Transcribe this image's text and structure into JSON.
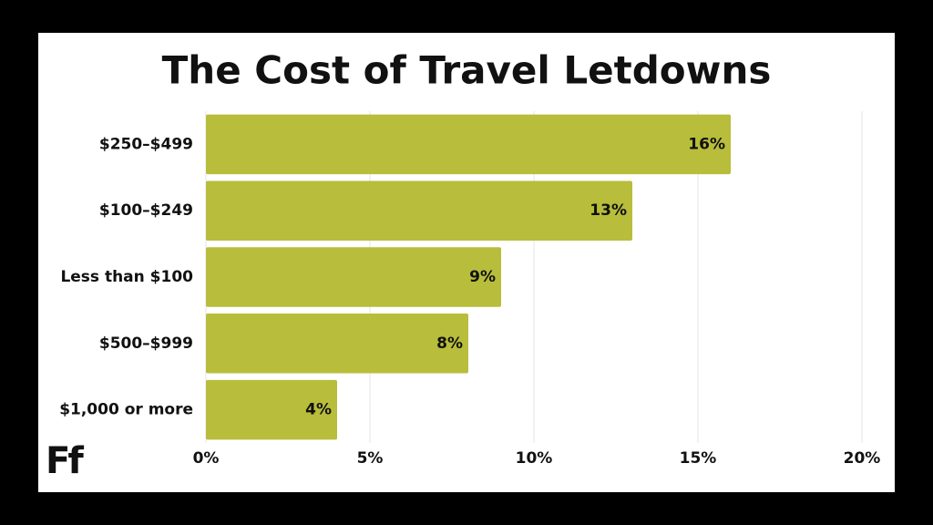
{
  "chart_data": {
    "type": "bar",
    "orientation": "horizontal",
    "title": "The Cost of Travel Letdowns",
    "categories": [
      "$250–$499",
      "$100–$249",
      "Less than $100",
      "$500–$999",
      "$1,000 or more"
    ],
    "values": [
      16,
      13,
      9,
      8,
      4
    ],
    "value_labels": [
      "16%",
      "13%",
      "9%",
      "8%",
      "4%"
    ],
    "color": "#b8bd3b",
    "xlim": [
      0,
      20
    ],
    "xticks": [
      {
        "value": 0,
        "label": "0%"
      },
      {
        "value": 5,
        "label": "5%"
      },
      {
        "value": 10,
        "label": "10%"
      },
      {
        "value": 15,
        "label": "15%"
      },
      {
        "value": 20,
        "label": "20%"
      }
    ],
    "grid": true
  },
  "logo": "Ff"
}
